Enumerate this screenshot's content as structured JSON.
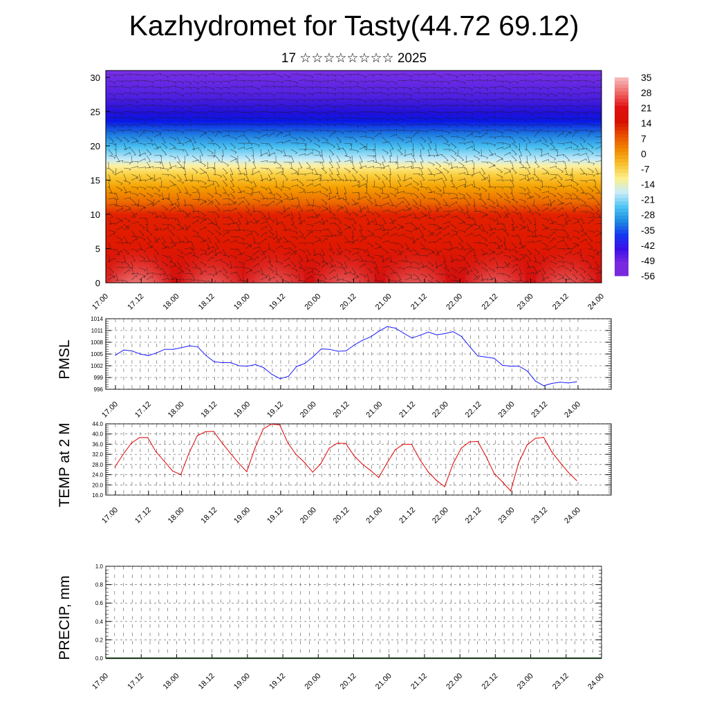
{
  "title": "Kazhydromet for Tasty(44.72 69.12)",
  "subtitle": "17 ☆☆☆☆☆☆☆☆ 2025",
  "colors": {
    "pmsl_line": "#1a1aff",
    "temp_line": "#e00000",
    "precip_line": "#1f3f1f"
  },
  "chart_data": [
    {
      "type": "heatmap",
      "variable": "vertical temperature section with wind barbs",
      "x_ticks": [
        "17.00",
        "17.12",
        "18.00",
        "18.12",
        "19.00",
        "19.12",
        "20.00",
        "20.12",
        "21.00",
        "21.12",
        "22.00",
        "22.12",
        "23.00",
        "23.12",
        "24.00"
      ],
      "y_ticks": [
        0,
        5,
        10,
        15,
        20,
        25,
        30
      ],
      "ylim": [
        0,
        31
      ],
      "colorbar": {
        "labels": [
          "35",
          "28",
          "21",
          "14",
          "7",
          "0",
          "-7",
          "-14",
          "-21",
          "-28",
          "-35",
          "-42",
          "-49",
          "-56"
        ],
        "colors": [
          "#f6b4b4",
          "#f06464",
          "#e01010",
          "#d61000",
          "#e85000",
          "#f08a00",
          "#f8c030",
          "#fcf08c",
          "#c8ecf8",
          "#50c4f4",
          "#1e8ce0",
          "#1438f0",
          "#3c10e8",
          "#7a28e0"
        ]
      },
      "bands": [
        {
          "from": 0,
          "to": 11,
          "label": "warm (red)"
        },
        {
          "from": 11,
          "to": 17,
          "label": "orange-yellow"
        },
        {
          "from": 17,
          "to": 24,
          "label": "cyan-blue"
        },
        {
          "from": 24,
          "to": 31,
          "label": "blue-purple"
        }
      ]
    },
    {
      "type": "line",
      "ylabel": "PMSL",
      "ylim": [
        996,
        1014
      ],
      "y_ticks": [
        996,
        999,
        1002,
        1005,
        1008,
        1011,
        1014
      ],
      "x_ticks": [
        "17.00",
        "17.12",
        "18.00",
        "18.12",
        "19.00",
        "19.12",
        "20.00",
        "20.12",
        "21.00",
        "21.12",
        "22.00",
        "22.12",
        "23.00",
        "23.12",
        "24.00"
      ],
      "step_hours": 3,
      "values": [
        1004.7,
        1006.0,
        1005.8,
        1005.0,
        1004.6,
        1005.3,
        1006.2,
        1006.2,
        1006.6,
        1007.1,
        1006.8,
        1004.6,
        1003.0,
        1002.8,
        1002.8,
        1002.0,
        1001.9,
        1002.3,
        1001.5,
        999.8,
        998.7,
        999.3,
        1001.8,
        1002.6,
        1004.3,
        1006.3,
        1006.2,
        1005.7,
        1005.8,
        1007.3,
        1008.5,
        1009.4,
        1010.8,
        1012.0,
        1011.6,
        1010.3,
        1009.1,
        1009.8,
        1010.6,
        1009.9,
        1010.2,
        1010.7,
        1009.5,
        1006.9,
        1004.5,
        1004.2,
        1003.9,
        1002.1,
        1001.9,
        1001.9,
        1000.7,
        998.1,
        996.9,
        997.5,
        997.8,
        997.6,
        997.9
      ]
    },
    {
      "type": "line",
      "ylabel": "TEMP at 2 M",
      "ylim": [
        16.0,
        44.0
      ],
      "y_ticks": [
        "16.0",
        "20.0",
        "24.0",
        "28.0",
        "32.0",
        "36.0",
        "40.0",
        "44.0"
      ],
      "x_ticks": [
        "17.00",
        "17.12",
        "18.00",
        "18.12",
        "19.00",
        "19.12",
        "20.00",
        "20.12",
        "21.00",
        "21.12",
        "22.00",
        "22.12",
        "23.00",
        "23.12",
        "24.00"
      ],
      "step_hours": 3,
      "values": [
        27.0,
        31.9,
        36.4,
        38.6,
        38.6,
        33.0,
        29.3,
        25.5,
        24.0,
        32.5,
        39.3,
        40.9,
        41.0,
        36.5,
        32.5,
        28.6,
        25.2,
        34.5,
        42.0,
        43.9,
        43.6,
        36.4,
        31.9,
        28.8,
        25.0,
        28.4,
        34.4,
        36.4,
        36.3,
        31.5,
        28.2,
        25.7,
        22.9,
        28.5,
        33.8,
        36.0,
        35.9,
        29.9,
        25.1,
        21.8,
        19.3,
        28.2,
        34.4,
        36.9,
        37.1,
        31.3,
        24.5,
        21.2,
        17.6,
        29.0,
        35.7,
        38.3,
        38.7,
        32.9,
        28.8,
        24.9,
        21.7
      ]
    },
    {
      "type": "line",
      "ylabel": "PRECIP, mm",
      "ylim": [
        0.0,
        1.0
      ],
      "y_ticks": [
        "0.0",
        "0.2",
        "0.4",
        "0.6",
        "0.8",
        "1.0"
      ],
      "x_ticks": [
        "17.00",
        "17.12",
        "18.00",
        "18.12",
        "19.00",
        "19.12",
        "20.00",
        "20.12",
        "21.00",
        "21.12",
        "22.00",
        "22.12",
        "23.00",
        "23.12",
        "24.00"
      ],
      "step_hours": 3,
      "values": [
        0,
        0,
        0,
        0,
        0,
        0,
        0,
        0,
        0,
        0,
        0,
        0,
        0,
        0,
        0,
        0,
        0,
        0,
        0,
        0,
        0,
        0,
        0,
        0,
        0,
        0,
        0,
        0,
        0,
        0,
        0,
        0,
        0,
        0,
        0,
        0,
        0,
        0,
        0,
        0,
        0,
        0,
        0,
        0,
        0,
        0,
        0,
        0,
        0,
        0,
        0,
        0,
        0,
        0,
        0,
        0,
        0
      ]
    }
  ]
}
